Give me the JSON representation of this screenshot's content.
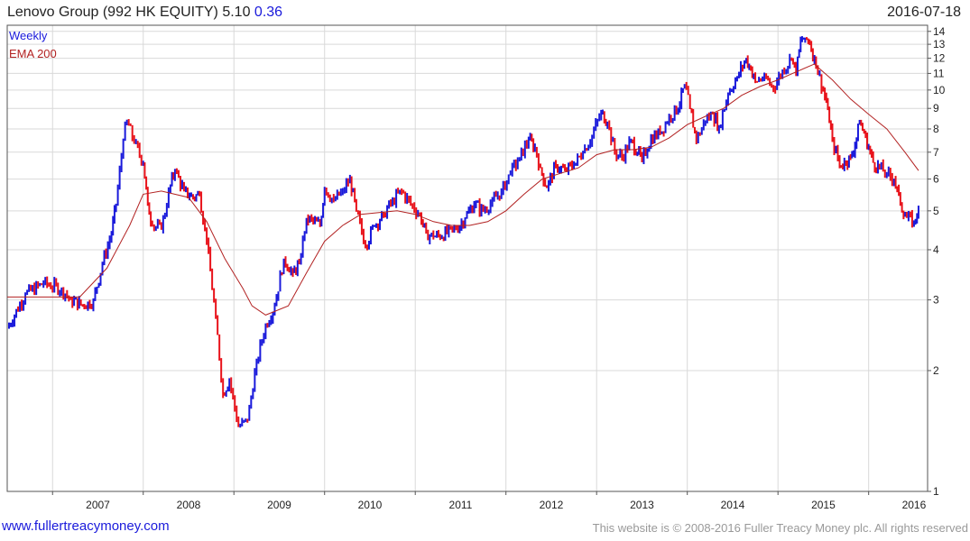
{
  "header": {
    "title": "Lenovo Group (992 HK EQUITY) 5.10",
    "change": "0.36",
    "date": "2016-07-18"
  },
  "legend": {
    "weekly": "Weekly",
    "ema": "EMA 200"
  },
  "footer": {
    "site": "www.fullertreacymoney.com",
    "copyright": "This website is © 2008-2016 Fuller Treacy Money plc. All rights reserved"
  },
  "colors": {
    "up": "#1a1adb",
    "down": "#e8131b",
    "ema": "#b22222",
    "grid": "#d9d9d9",
    "frame": "#555555"
  },
  "chart_data": {
    "type": "line",
    "scale": "log",
    "grid": true,
    "legend_position": "top-left",
    "ylim": [
      1,
      14.5
    ],
    "xlim": [
      2006.5,
      2016.65
    ],
    "y_ticks": [
      1,
      2,
      3,
      4,
      5,
      6,
      7,
      8,
      9,
      10,
      11,
      12,
      13,
      14
    ],
    "x_ticks": [
      "2007",
      "2008",
      "2009",
      "2010",
      "2011",
      "2012",
      "2013",
      "2014",
      "2015",
      "2016"
    ],
    "series": [
      {
        "name": "Weekly",
        "style": "ohlc-colored",
        "points": [
          [
            2006.5,
            2.55
          ],
          [
            2006.7,
            3.1
          ],
          [
            2006.9,
            3.3
          ],
          [
            2007.1,
            3.2
          ],
          [
            2007.2,
            3.0
          ],
          [
            2007.35,
            2.9
          ],
          [
            2007.45,
            3.0
          ],
          [
            2007.55,
            3.7
          ],
          [
            2007.65,
            4.4
          ],
          [
            2007.7,
            5.2
          ],
          [
            2007.78,
            7.5
          ],
          [
            2007.82,
            8.4
          ],
          [
            2007.9,
            7.4
          ],
          [
            2008.0,
            6.6
          ],
          [
            2008.05,
            5.2
          ],
          [
            2008.1,
            4.6
          ],
          [
            2008.2,
            4.5
          ],
          [
            2008.3,
            5.8
          ],
          [
            2008.35,
            6.3
          ],
          [
            2008.45,
            5.6
          ],
          [
            2008.55,
            5.4
          ],
          [
            2008.62,
            5.5
          ],
          [
            2008.7,
            4.2
          ],
          [
            2008.8,
            2.7
          ],
          [
            2008.88,
            1.75
          ],
          [
            2008.95,
            1.9
          ],
          [
            2009.05,
            1.45
          ],
          [
            2009.15,
            1.5
          ],
          [
            2009.25,
            2.1
          ],
          [
            2009.35,
            2.6
          ],
          [
            2009.45,
            2.9
          ],
          [
            2009.55,
            3.8
          ],
          [
            2009.65,
            3.5
          ],
          [
            2009.72,
            3.7
          ],
          [
            2009.8,
            4.8
          ],
          [
            2009.95,
            4.6
          ],
          [
            2010.0,
            5.7
          ],
          [
            2010.1,
            5.3
          ],
          [
            2010.2,
            5.6
          ],
          [
            2010.28,
            6.0
          ],
          [
            2010.35,
            5.0
          ],
          [
            2010.45,
            4.1
          ],
          [
            2010.55,
            4.6
          ],
          [
            2010.65,
            4.9
          ],
          [
            2010.75,
            5.3
          ],
          [
            2010.85,
            5.6
          ],
          [
            2010.95,
            5.2
          ],
          [
            2011.05,
            4.9
          ],
          [
            2011.12,
            4.4
          ],
          [
            2011.2,
            4.3
          ],
          [
            2011.35,
            4.4
          ],
          [
            2011.45,
            4.5
          ],
          [
            2011.55,
            4.8
          ],
          [
            2011.65,
            5.2
          ],
          [
            2011.75,
            5.0
          ],
          [
            2011.85,
            5.3
          ],
          [
            2011.95,
            5.6
          ],
          [
            2012.05,
            6.2
          ],
          [
            2012.15,
            6.8
          ],
          [
            2012.25,
            7.5
          ],
          [
            2012.32,
            7.2
          ],
          [
            2012.38,
            6.4
          ],
          [
            2012.45,
            5.7
          ],
          [
            2012.55,
            6.5
          ],
          [
            2012.65,
            6.3
          ],
          [
            2012.75,
            6.5
          ],
          [
            2012.85,
            7.0
          ],
          [
            2012.95,
            7.7
          ],
          [
            2013.05,
            8.8
          ],
          [
            2013.12,
            8.3
          ],
          [
            2013.2,
            7.0
          ],
          [
            2013.28,
            6.8
          ],
          [
            2013.38,
            7.5
          ],
          [
            2013.45,
            7.0
          ],
          [
            2013.5,
            6.7
          ],
          [
            2013.6,
            7.6
          ],
          [
            2013.7,
            7.8
          ],
          [
            2013.8,
            8.6
          ],
          [
            2013.9,
            9.0
          ],
          [
            2013.97,
            10.3
          ],
          [
            2014.03,
            9.0
          ],
          [
            2014.1,
            7.5
          ],
          [
            2014.2,
            8.4
          ],
          [
            2014.28,
            8.7
          ],
          [
            2014.35,
            8.1
          ],
          [
            2014.45,
            9.8
          ],
          [
            2014.55,
            10.8
          ],
          [
            2014.65,
            12.0
          ],
          [
            2014.7,
            11.2
          ],
          [
            2014.75,
            10.5
          ],
          [
            2014.85,
            10.8
          ],
          [
            2014.95,
            10.1
          ],
          [
            2015.05,
            11.2
          ],
          [
            2015.15,
            12.0
          ],
          [
            2015.2,
            11.0
          ],
          [
            2015.25,
            13.3
          ],
          [
            2015.3,
            13.5
          ],
          [
            2015.35,
            13.1
          ],
          [
            2015.42,
            11.5
          ],
          [
            2015.5,
            10.0
          ],
          [
            2015.55,
            9.0
          ],
          [
            2015.6,
            7.5
          ],
          [
            2015.68,
            6.5
          ],
          [
            2015.75,
            6.6
          ],
          [
            2015.8,
            6.8
          ],
          [
            2015.85,
            7.3
          ],
          [
            2015.9,
            8.3
          ],
          [
            2015.95,
            7.8
          ],
          [
            2016.0,
            7.2
          ],
          [
            2016.05,
            6.6
          ],
          [
            2016.12,
            6.4
          ],
          [
            2016.2,
            6.2
          ],
          [
            2016.28,
            6.0
          ],
          [
            2016.35,
            5.2
          ],
          [
            2016.42,
            4.8
          ],
          [
            2016.5,
            4.7
          ],
          [
            2016.55,
            5.1
          ]
        ]
      },
      {
        "name": "EMA 200",
        "style": "line",
        "points": [
          [
            2006.5,
            3.05
          ],
          [
            2007.3,
            3.05
          ],
          [
            2007.6,
            3.6
          ],
          [
            2007.85,
            4.6
          ],
          [
            2008.0,
            5.5
          ],
          [
            2008.2,
            5.6
          ],
          [
            2008.5,
            5.4
          ],
          [
            2008.7,
            4.7
          ],
          [
            2008.9,
            3.8
          ],
          [
            2009.1,
            3.2
          ],
          [
            2009.2,
            2.9
          ],
          [
            2009.35,
            2.75
          ],
          [
            2009.6,
            2.9
          ],
          [
            2009.8,
            3.5
          ],
          [
            2010.0,
            4.2
          ],
          [
            2010.2,
            4.6
          ],
          [
            2010.4,
            4.9
          ],
          [
            2010.6,
            4.95
          ],
          [
            2010.8,
            5.0
          ],
          [
            2011.0,
            4.9
          ],
          [
            2011.2,
            4.7
          ],
          [
            2011.4,
            4.6
          ],
          [
            2011.6,
            4.6
          ],
          [
            2011.8,
            4.7
          ],
          [
            2012.0,
            5.0
          ],
          [
            2012.2,
            5.5
          ],
          [
            2012.4,
            6.0
          ],
          [
            2012.6,
            6.2
          ],
          [
            2012.8,
            6.4
          ],
          [
            2013.0,
            6.9
          ],
          [
            2013.2,
            7.1
          ],
          [
            2013.4,
            7.1
          ],
          [
            2013.6,
            7.2
          ],
          [
            2013.8,
            7.6
          ],
          [
            2014.0,
            8.2
          ],
          [
            2014.2,
            8.6
          ],
          [
            2014.4,
            9.0
          ],
          [
            2014.6,
            9.7
          ],
          [
            2014.8,
            10.2
          ],
          [
            2015.0,
            10.6
          ],
          [
            2015.2,
            11.1
          ],
          [
            2015.4,
            11.6
          ],
          [
            2015.6,
            10.6
          ],
          [
            2015.8,
            9.5
          ],
          [
            2016.0,
            8.7
          ],
          [
            2016.2,
            8.0
          ],
          [
            2016.4,
            7.0
          ],
          [
            2016.55,
            6.3
          ]
        ]
      }
    ]
  }
}
